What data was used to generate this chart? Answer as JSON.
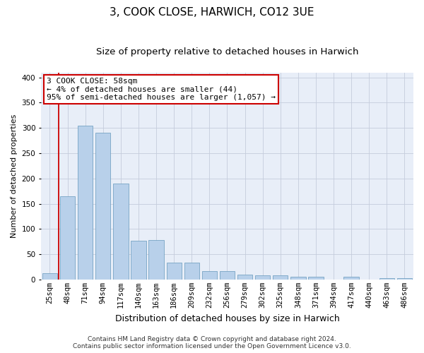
{
  "title": "3, COOK CLOSE, HARWICH, CO12 3UE",
  "subtitle": "Size of property relative to detached houses in Harwich",
  "xlabel": "Distribution of detached houses by size in Harwich",
  "ylabel": "Number of detached properties",
  "categories": [
    "25sqm",
    "48sqm",
    "71sqm",
    "94sqm",
    "117sqm",
    "140sqm",
    "163sqm",
    "186sqm",
    "209sqm",
    "232sqm",
    "256sqm",
    "279sqm",
    "302sqm",
    "325sqm",
    "348sqm",
    "371sqm",
    "394sqm",
    "417sqm",
    "440sqm",
    "463sqm",
    "486sqm"
  ],
  "values": [
    13,
    165,
    305,
    290,
    190,
    77,
    78,
    33,
    33,
    16,
    16,
    9,
    8,
    8,
    5,
    5,
    0,
    5,
    0,
    3,
    3
  ],
  "bar_color": "#b8d0ea",
  "bar_edge_color": "#6699bb",
  "background_color": "#ffffff",
  "plot_bg_color": "#e8eef8",
  "grid_color": "#c5ccdc",
  "annotation_line1": "3 COOK CLOSE: 58sqm",
  "annotation_line2": "← 4% of detached houses are smaller (44)",
  "annotation_line3": "95% of semi-detached houses are larger (1,057) →",
  "annotation_box_color": "#ffffff",
  "annotation_box_edge_color": "#cc0000",
  "vline_color": "#cc0000",
  "vline_x_index": 1,
  "ylim_max": 410,
  "yticks": [
    0,
    50,
    100,
    150,
    200,
    250,
    300,
    350,
    400
  ],
  "footer_line1": "Contains HM Land Registry data © Crown copyright and database right 2024.",
  "footer_line2": "Contains public sector information licensed under the Open Government Licence v3.0.",
  "title_fontsize": 11,
  "subtitle_fontsize": 9.5,
  "xlabel_fontsize": 9,
  "ylabel_fontsize": 8,
  "tick_fontsize": 7.5,
  "annotation_fontsize": 8,
  "footer_fontsize": 6.5
}
